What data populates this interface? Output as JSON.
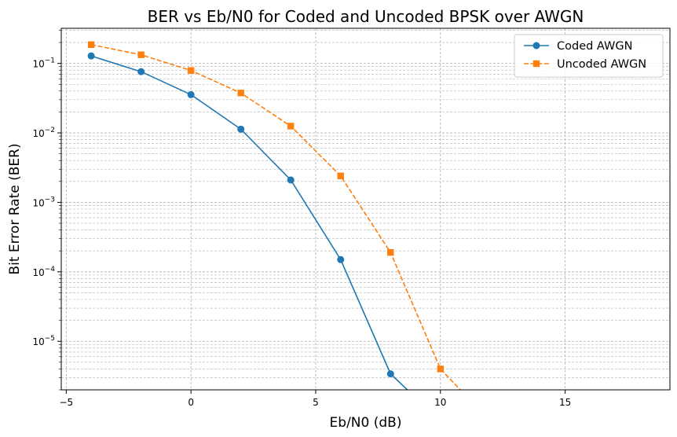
{
  "chart_data": {
    "type": "line",
    "title": "BER vs Eb/N0 for Coded and Uncoded BPSK over AWGN",
    "xlabel": "Eb/N0 (dB)",
    "ylabel": "Bit Error Rate (BER)",
    "xlim": [
      -5.2,
      19.2
    ],
    "ylim": [
      2e-06,
      0.32
    ],
    "yscale": "log",
    "grid": true,
    "legend_position": "top-right",
    "x_ticks": [
      -5,
      0,
      5,
      10,
      15
    ],
    "x_tick_labels": [
      "−5",
      "0",
      "5",
      "10",
      "15"
    ],
    "y_ticks": [
      {
        "value": 1e-05,
        "mantissa": "10",
        "exp": "−5"
      },
      {
        "value": 0.0001,
        "mantissa": "10",
        "exp": "−4"
      },
      {
        "value": 0.001,
        "mantissa": "10",
        "exp": "−3"
      },
      {
        "value": 0.01,
        "mantissa": "10",
        "exp": "−2"
      },
      {
        "value": 0.1,
        "mantissa": "10",
        "exp": "−1"
      }
    ],
    "series": [
      {
        "name": "Coded AWGN",
        "color": "#1f77b4",
        "marker": "circle",
        "linestyle": "solid",
        "x": [
          -4,
          -2,
          0,
          2,
          4,
          6,
          8,
          10
        ],
        "y": [
          0.128,
          0.076,
          0.0355,
          0.0113,
          0.0021,
          0.00015,
          3.4e-06,
          0
        ]
      },
      {
        "name": "Uncoded AWGN",
        "color": "#ff7f0e",
        "marker": "square",
        "linestyle": "dashed",
        "x": [
          -4,
          -2,
          0,
          2,
          4,
          6,
          8,
          10,
          12
        ],
        "y": [
          0.186,
          0.133,
          0.079,
          0.0375,
          0.0125,
          0.0024,
          0.00019,
          4e-06,
          0
        ]
      }
    ]
  }
}
